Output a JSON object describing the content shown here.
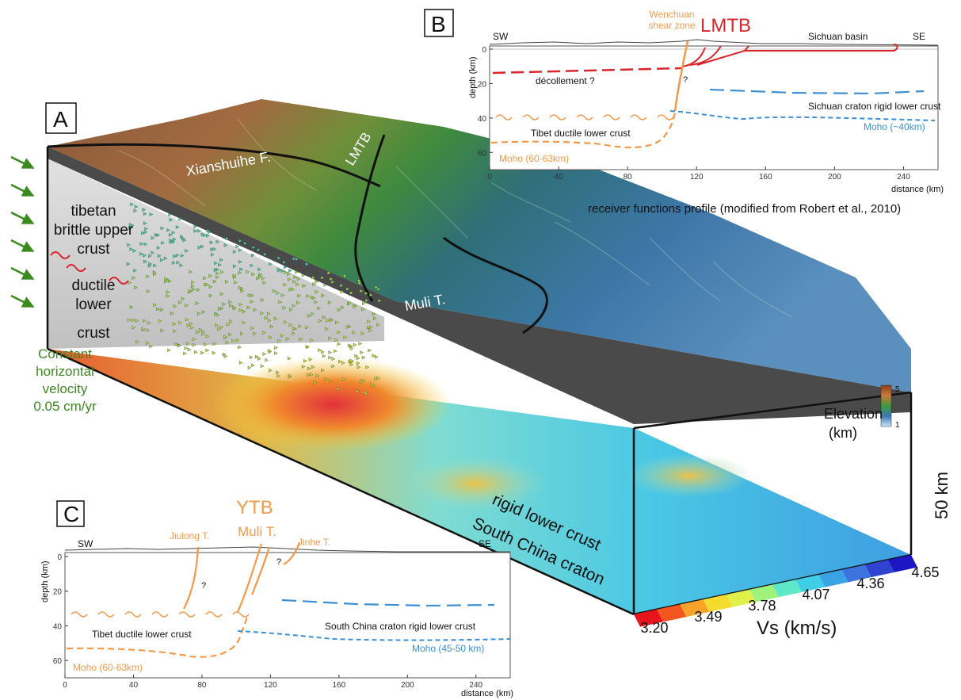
{
  "panelA": {
    "letter": "A",
    "faults": {
      "xianshuihe": "Xianshuihe F.",
      "lmtb": "LMTB",
      "muli": "Muli T."
    },
    "crust": [
      "tibetan",
      "brittle upper",
      "crust",
      "ductile",
      "lower",
      "crust"
    ],
    "velocity": [
      "Constant",
      "horizontal",
      "velocity",
      "0.05 cm/yr"
    ],
    "elevation": {
      "title1": "Elevation",
      "title2": "(km)",
      "max": "5",
      "min": "1"
    },
    "depth_label": "50 km",
    "craton": {
      "line1": "rigid lower crust",
      "line2": "South China craton"
    },
    "vs_scale": {
      "labels": [
        "3.20",
        "3.49",
        "3.78",
        "4.07",
        "4.36",
        "4.65"
      ],
      "title": "Vs (km/s)",
      "colors": [
        "#e8141c",
        "#f2551e",
        "#f8a22a",
        "#f4dc2e",
        "#dff04a",
        "#9ff27a",
        "#5ee7c8",
        "#3fcde8",
        "#3aa3e6",
        "#3a74dc",
        "#2f43d0",
        "#1c16c4"
      ]
    }
  },
  "panelB": {
    "letter": "B",
    "labels": {
      "sw": "SW",
      "se": "SE",
      "shear1": "Wenchuan",
      "shear2": "shear zone",
      "lmtb": "LMTB",
      "basin": "Sichuan basin",
      "decollement": "décollement ?",
      "question": "?",
      "craton": "Sichuan craton rigid lower crust",
      "ductile": "Tibet ductile lower crust",
      "moho_w": "Moho (60-63km)",
      "moho_e": "Moho (~40km)",
      "ylabel": "depth (km)",
      "xlabel": "distance  (km)",
      "caption": "receiver functions profile (modified from Robert et al., 2010)"
    },
    "yticks": [
      "0",
      "20",
      "40",
      "60"
    ],
    "xticks": [
      "0",
      "40",
      "80",
      "120",
      "160",
      "200",
      "240"
    ]
  },
  "panelC": {
    "letter": "C",
    "labels": {
      "ytb": "YTB",
      "jiulong": "Jiulong T.",
      "muli": "Muli T.",
      "jinhe": "Jinhe T.",
      "sw": "SW",
      "se": "SE",
      "q1": "?",
      "q2": "?",
      "ductile": "Tibet ductile lower crust",
      "craton": "South China craton rigid lower crust",
      "moho_w": "Moho (60-63km)",
      "moho_e": "Moho (45-50 km)",
      "ylabel": "depth (km)",
      "xlabel": "distance  (km)"
    },
    "yticks": [
      "0",
      "20",
      "40",
      "60"
    ],
    "xticks": [
      "0",
      "40",
      "80",
      "120",
      "160",
      "200",
      "240"
    ]
  },
  "colors": {
    "orange": "#f29a4a",
    "blue": "#3d8fd4",
    "red": "#d8262c",
    "green": "#3b8a1e"
  }
}
